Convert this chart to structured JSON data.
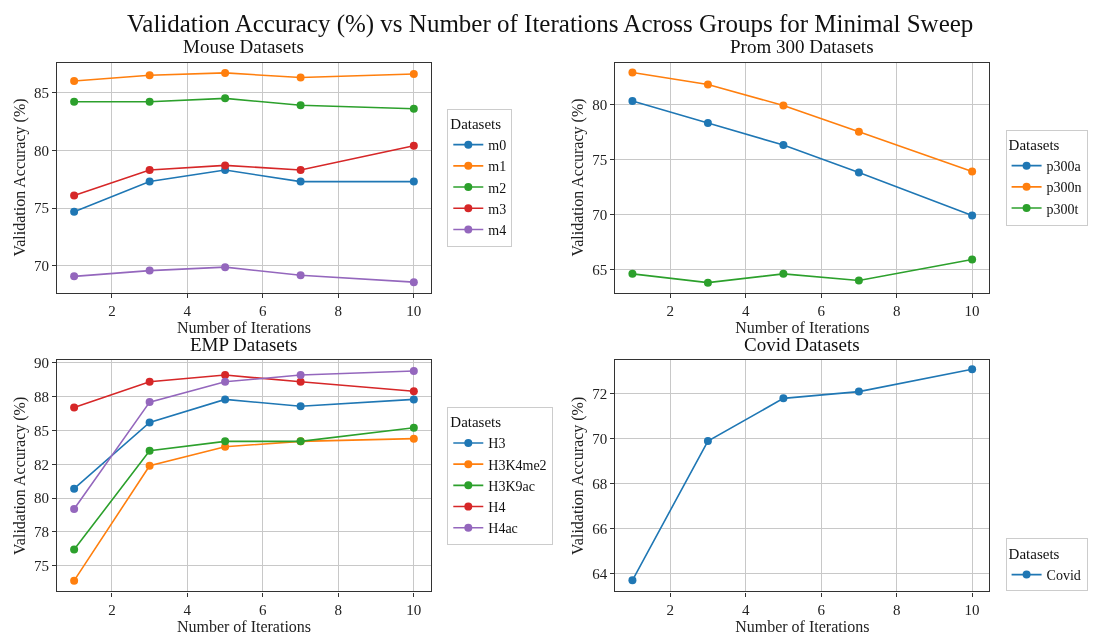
{
  "chart_data": [
    {
      "type": "line",
      "title": "Mouse Datasets",
      "xlabel": "Number of Iterations",
      "ylabel": "Validation Accuracy (%)",
      "legend_title": "Datasets",
      "annotations": [
        "Validation Accuracy (%) vs Number of Iterations Across Groups for Minimal Sweep"
      ],
      "x": [
        1,
        3,
        5,
        7,
        10
      ],
      "xlim": [
        0.55,
        10.45
      ],
      "xticks": [
        2,
        4,
        6,
        8,
        10
      ],
      "ylim": [
        67.7,
        87.6
      ],
      "yticks": [
        70,
        75,
        80,
        85
      ],
      "grid": true,
      "legend": "right",
      "marker": "circle",
      "line_style": "solid",
      "series": [
        {
          "name": "m0",
          "color": "#1f77b4",
          "values": [
            74.7,
            77.3,
            78.3,
            77.3,
            77.3
          ]
        },
        {
          "name": "m1",
          "color": "#ff7f0e",
          "values": [
            86.0,
            86.5,
            86.7,
            86.3,
            86.6
          ]
        },
        {
          "name": "m2",
          "color": "#2ca02c",
          "values": [
            84.2,
            84.2,
            84.5,
            83.9,
            83.6
          ]
        },
        {
          "name": "m3",
          "color": "#d62728",
          "values": [
            76.1,
            78.3,
            78.7,
            78.3,
            80.4
          ]
        },
        {
          "name": "m4",
          "color": "#9467bd",
          "values": [
            69.1,
            69.6,
            69.9,
            69.2,
            68.6
          ]
        }
      ]
    },
    {
      "type": "line",
      "title": "Prom 300 Datasets",
      "xlabel": "Number of Iterations",
      "ylabel": "Validation Accuracy (%)",
      "legend_title": "Datasets",
      "x": [
        1,
        3,
        5,
        7,
        10
      ],
      "xlim": [
        0.55,
        10.45
      ],
      "xticks": [
        2,
        4,
        6,
        8,
        10
      ],
      "ylim": [
        62.9,
        83.8
      ],
      "yticks": [
        65,
        70,
        75,
        80
      ],
      "grid": true,
      "legend": "right",
      "marker": "circle",
      "line_style": "solid",
      "series": [
        {
          "name": "p300a",
          "color": "#1f77b4",
          "values": [
            80.3,
            78.3,
            76.3,
            73.8,
            69.9
          ]
        },
        {
          "name": "p300n",
          "color": "#ff7f0e",
          "values": [
            82.9,
            81.8,
            79.9,
            77.5,
            73.9
          ]
        },
        {
          "name": "p300t",
          "color": "#2ca02c",
          "values": [
            64.6,
            63.8,
            64.6,
            64.0,
            65.9
          ]
        }
      ]
    },
    {
      "type": "line",
      "title": "EMP Datasets",
      "xlabel": "Number of Iterations",
      "ylabel": "Validation Accuracy (%)",
      "legend_title": "Datasets",
      "x": [
        1,
        3,
        5,
        7,
        10
      ],
      "xlim": [
        0.55,
        10.45
      ],
      "xticks": [
        2,
        4,
        6,
        8,
        10
      ],
      "ylim": [
        73.1,
        90.2
      ],
      "yticks": [
        75,
        {
          "value": 77.5,
          "label": "78"
        },
        80,
        {
          "value": 82.5,
          "label": "82"
        },
        85,
        {
          "value": 87.5,
          "label": "88"
        },
        90
      ],
      "grid": true,
      "legend": "right",
      "marker": "circle",
      "line_style": "solid",
      "series": [
        {
          "name": "H3",
          "color": "#1f77b4",
          "values": [
            80.7,
            85.6,
            87.3,
            86.8,
            87.3
          ]
        },
        {
          "name": "H3K4me2",
          "color": "#ff7f0e",
          "values": [
            73.9,
            82.4,
            83.8,
            84.2,
            84.4
          ]
        },
        {
          "name": "H3K9ac",
          "color": "#2ca02c",
          "values": [
            76.2,
            83.5,
            84.2,
            84.2,
            85.2
          ]
        },
        {
          "name": "H4",
          "color": "#d62728",
          "values": [
            86.7,
            88.6,
            89.1,
            88.6,
            87.9
          ]
        },
        {
          "name": "H4ac",
          "color": "#9467bd",
          "values": [
            79.2,
            87.1,
            88.6,
            89.1,
            89.4
          ]
        }
      ]
    },
    {
      "type": "line",
      "title": "Covid Datasets",
      "xlabel": "Number of Iterations",
      "ylabel": "Validation Accuracy (%)",
      "legend_title": "Datasets",
      "x": [
        1,
        3,
        5,
        7,
        10
      ],
      "xlim": [
        0.55,
        10.45
      ],
      "xticks": [
        2,
        4,
        6,
        8,
        10
      ],
      "ylim": [
        63.2,
        73.5
      ],
      "yticks": [
        64,
        66,
        68,
        70,
        72
      ],
      "grid": true,
      "legend": "bottom right",
      "marker": "circle",
      "line_style": "solid",
      "series": [
        {
          "name": "Covid",
          "color": "#1f77b4",
          "values": [
            63.7,
            69.9,
            71.8,
            72.1,
            73.1
          ]
        }
      ]
    }
  ]
}
